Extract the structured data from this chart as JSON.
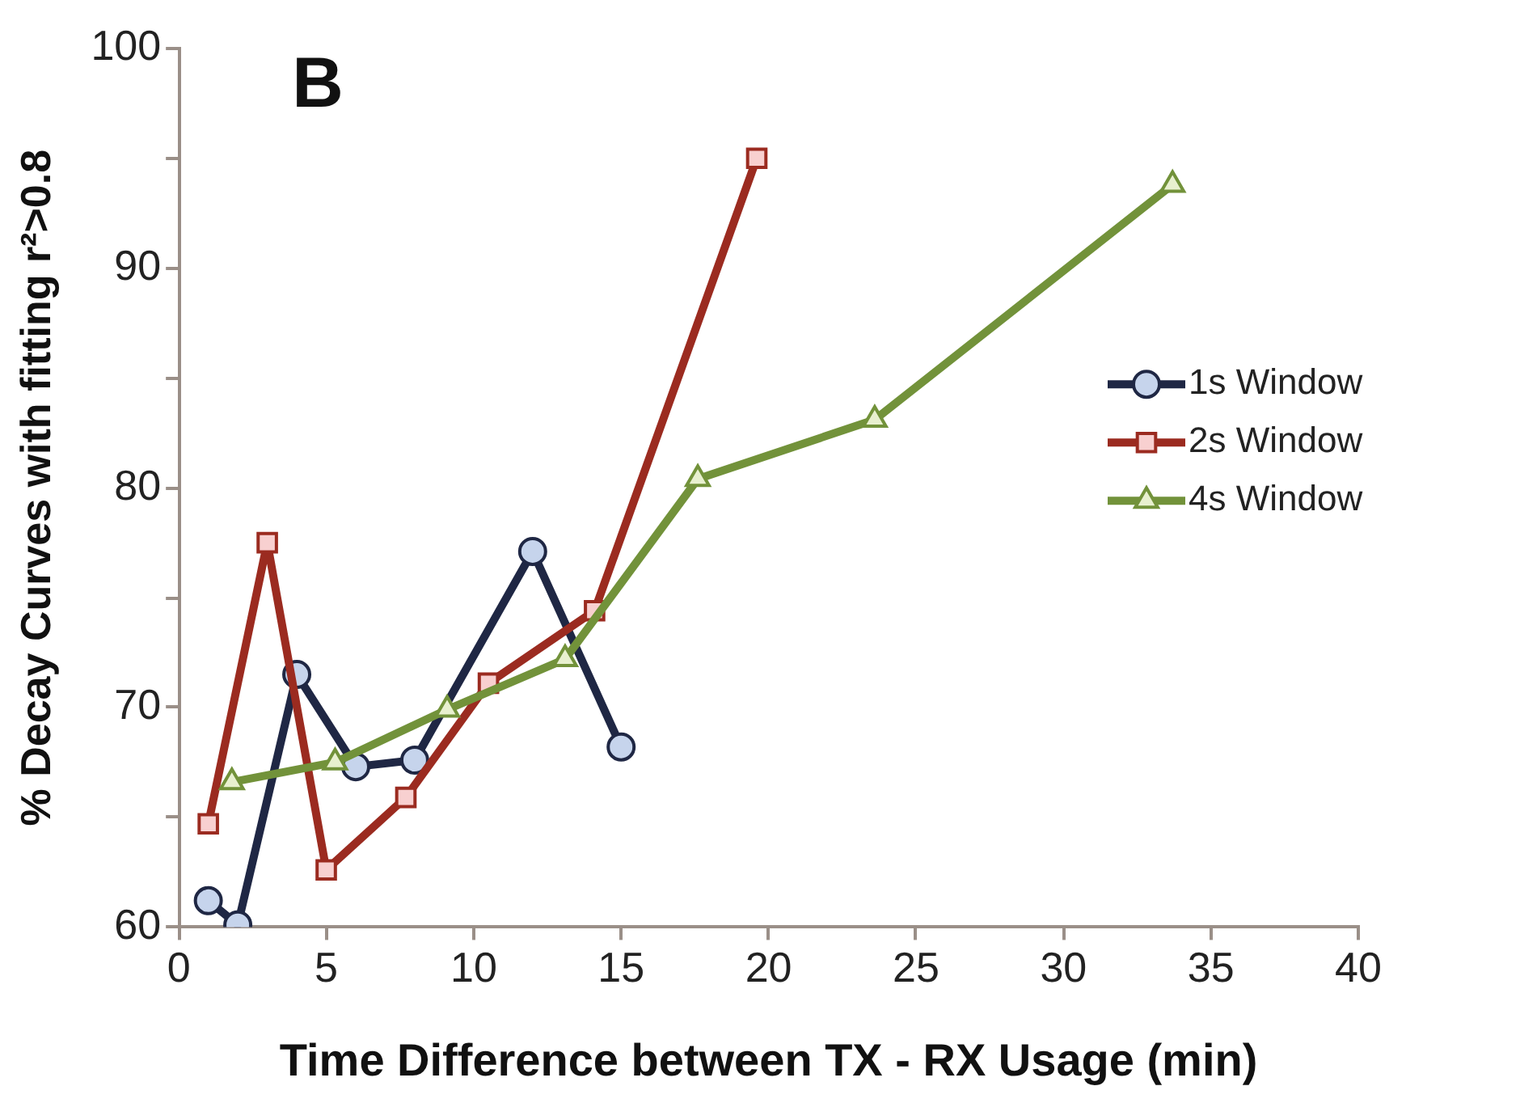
{
  "chart_data": {
    "type": "line",
    "xlabel": "Time Difference between TX - RX Usage (min)",
    "ylabel": "% Decay Curves with fitting r²>0.8",
    "annotations": [
      "B"
    ],
    "xlim": [
      0,
      40
    ],
    "xticks": [
      0,
      5,
      10,
      15,
      20,
      25,
      30,
      35,
      40
    ],
    "ylim": [
      60,
      100
    ],
    "yticks": [
      60,
      {
        "value": 65,
        "label": null
      },
      70,
      {
        "value": 75,
        "label": null
      },
      80,
      {
        "value": 85,
        "label": null
      },
      90,
      {
        "value": 95,
        "label": null
      },
      100
    ],
    "grid": false,
    "legend": "right",
    "line_style": "solid",
    "series": [
      {
        "name": "1s Window",
        "color": "#1f2744",
        "marker": "circle",
        "x": [
          1,
          2,
          4,
          6,
          8,
          12,
          15
        ],
        "values": [
          61.2,
          60.1,
          71.5,
          67.3,
          67.6,
          77.1,
          68.2
        ]
      },
      {
        "name": "2s Window",
        "color": "#9b2b20",
        "marker": "square",
        "x": [
          1,
          3,
          5,
          7.7,
          10.5,
          14.1,
          19.6
        ],
        "values": [
          64.7,
          77.5,
          62.6,
          65.9,
          71.1,
          74.4,
          95.0
        ]
      },
      {
        "name": "4s Window",
        "color": "#72923a",
        "marker": "triangle",
        "x": [
          1.8,
          5.3,
          9.1,
          13.1,
          17.6,
          23.6,
          33.7
        ],
        "values": [
          66.6,
          67.5,
          69.9,
          72.2,
          80.4,
          83.1,
          93.8
        ]
      }
    ]
  }
}
